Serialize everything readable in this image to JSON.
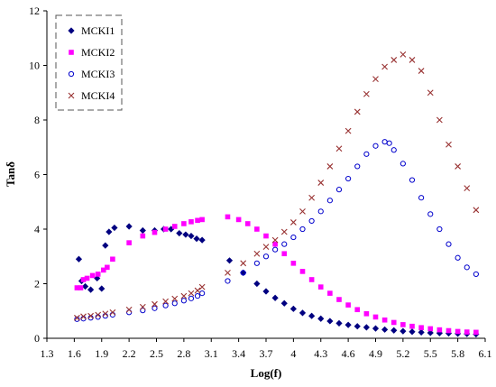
{
  "chart_data": {
    "type": "scatter",
    "title": "",
    "xlabel": "Log(f)",
    "ylabel": "Tanδ",
    "xlim": [
      1.3,
      6.1
    ],
    "ylim": [
      0,
      12
    ],
    "xticks": [
      "1.3",
      "1.6",
      "1.9",
      "2.2",
      "2.5",
      "2.8",
      "3.1",
      "3.4",
      "3.7",
      "4",
      "4.3",
      "4.6",
      "4.9",
      "5.2",
      "5.5",
      "5.8",
      "6.1"
    ],
    "yticks": [
      "0",
      "2",
      "4",
      "6",
      "8",
      "10",
      "12"
    ],
    "grid": false,
    "legend_position": "top-left",
    "series": [
      {
        "name": "MCKI1",
        "marker": "diamond",
        "color": "#000080",
        "points": [
          [
            1.65,
            2.9
          ],
          [
            1.68,
            2.1
          ],
          [
            1.72,
            1.9
          ],
          [
            1.78,
            1.78
          ],
          [
            1.85,
            2.2
          ],
          [
            1.9,
            1.82
          ],
          [
            1.94,
            3.4
          ],
          [
            1.98,
            3.9
          ],
          [
            2.04,
            4.05
          ],
          [
            2.2,
            4.1
          ],
          [
            2.35,
            3.95
          ],
          [
            2.48,
            3.95
          ],
          [
            2.58,
            4.0
          ],
          [
            2.66,
            4.0
          ],
          [
            2.75,
            3.85
          ],
          [
            2.82,
            3.8
          ],
          [
            2.88,
            3.75
          ],
          [
            2.94,
            3.65
          ],
          [
            3.0,
            3.6
          ],
          [
            3.3,
            2.85
          ],
          [
            3.45,
            2.4
          ],
          [
            3.6,
            2.0
          ],
          [
            3.7,
            1.72
          ],
          [
            3.8,
            1.48
          ],
          [
            3.9,
            1.28
          ],
          [
            4.0,
            1.08
          ],
          [
            4.1,
            0.93
          ],
          [
            4.2,
            0.82
          ],
          [
            4.3,
            0.72
          ],
          [
            4.4,
            0.63
          ],
          [
            4.5,
            0.55
          ],
          [
            4.6,
            0.49
          ],
          [
            4.7,
            0.44
          ],
          [
            4.8,
            0.4
          ],
          [
            4.9,
            0.36
          ],
          [
            5.0,
            0.32
          ],
          [
            5.1,
            0.29
          ],
          [
            5.2,
            0.26
          ],
          [
            5.3,
            0.24
          ],
          [
            5.4,
            0.22
          ],
          [
            5.5,
            0.2
          ],
          [
            5.6,
            0.19
          ],
          [
            5.7,
            0.18
          ],
          [
            5.8,
            0.17
          ],
          [
            5.9,
            0.16
          ],
          [
            6.0,
            0.15
          ]
        ]
      },
      {
        "name": "MCKI2",
        "marker": "square",
        "color": "#FF00FF",
        "points": [
          [
            1.63,
            1.85
          ],
          [
            1.67,
            1.85
          ],
          [
            1.7,
            2.15
          ],
          [
            1.74,
            2.2
          ],
          [
            1.8,
            2.3
          ],
          [
            1.86,
            2.35
          ],
          [
            1.92,
            2.5
          ],
          [
            1.96,
            2.6
          ],
          [
            2.02,
            2.9
          ],
          [
            2.2,
            3.5
          ],
          [
            2.35,
            3.75
          ],
          [
            2.48,
            3.88
          ],
          [
            2.6,
            4.0
          ],
          [
            2.7,
            4.1
          ],
          [
            2.8,
            4.2
          ],
          [
            2.88,
            4.27
          ],
          [
            2.95,
            4.32
          ],
          [
            3.0,
            4.35
          ],
          [
            3.28,
            4.45
          ],
          [
            3.4,
            4.35
          ],
          [
            3.5,
            4.2
          ],
          [
            3.6,
            4.0
          ],
          [
            3.7,
            3.75
          ],
          [
            3.8,
            3.45
          ],
          [
            3.9,
            3.1
          ],
          [
            4.0,
            2.75
          ],
          [
            4.1,
            2.45
          ],
          [
            4.2,
            2.15
          ],
          [
            4.3,
            1.88
          ],
          [
            4.4,
            1.65
          ],
          [
            4.5,
            1.42
          ],
          [
            4.6,
            1.22
          ],
          [
            4.7,
            1.05
          ],
          [
            4.8,
            0.9
          ],
          [
            4.9,
            0.78
          ],
          [
            5.0,
            0.67
          ],
          [
            5.1,
            0.58
          ],
          [
            5.2,
            0.5
          ],
          [
            5.3,
            0.44
          ],
          [
            5.4,
            0.39
          ],
          [
            5.5,
            0.35
          ],
          [
            5.6,
            0.31
          ],
          [
            5.7,
            0.28
          ],
          [
            5.8,
            0.25
          ],
          [
            5.9,
            0.23
          ],
          [
            6.0,
            0.22
          ]
        ]
      },
      {
        "name": "MCKI3",
        "marker": "circle",
        "color": "#0000CC",
        "points": [
          [
            1.63,
            0.7
          ],
          [
            1.7,
            0.72
          ],
          [
            1.78,
            0.75
          ],
          [
            1.86,
            0.78
          ],
          [
            1.94,
            0.82
          ],
          [
            2.02,
            0.86
          ],
          [
            2.2,
            0.95
          ],
          [
            2.35,
            1.02
          ],
          [
            2.48,
            1.1
          ],
          [
            2.6,
            1.2
          ],
          [
            2.7,
            1.28
          ],
          [
            2.8,
            1.38
          ],
          [
            2.88,
            1.46
          ],
          [
            2.95,
            1.55
          ],
          [
            3.0,
            1.65
          ],
          [
            3.28,
            2.1
          ],
          [
            3.45,
            2.4
          ],
          [
            3.6,
            2.75
          ],
          [
            3.7,
            3.0
          ],
          [
            3.8,
            3.25
          ],
          [
            3.9,
            3.45
          ],
          [
            4.0,
            3.7
          ],
          [
            4.1,
            4.0
          ],
          [
            4.2,
            4.3
          ],
          [
            4.3,
            4.65
          ],
          [
            4.4,
            5.05
          ],
          [
            4.5,
            5.45
          ],
          [
            4.6,
            5.85
          ],
          [
            4.7,
            6.3
          ],
          [
            4.8,
            6.75
          ],
          [
            4.9,
            7.05
          ],
          [
            5.0,
            7.2
          ],
          [
            5.05,
            7.15
          ],
          [
            5.1,
            6.9
          ],
          [
            5.2,
            6.4
          ],
          [
            5.3,
            5.8
          ],
          [
            5.4,
            5.15
          ],
          [
            5.5,
            4.55
          ],
          [
            5.6,
            4.0
          ],
          [
            5.7,
            3.45
          ],
          [
            5.8,
            2.95
          ],
          [
            5.9,
            2.6
          ],
          [
            6.0,
            2.35
          ]
        ]
      },
      {
        "name": "MCKI4",
        "marker": "cross",
        "color": "#993333",
        "points": [
          [
            1.63,
            0.75
          ],
          [
            1.7,
            0.8
          ],
          [
            1.78,
            0.82
          ],
          [
            1.86,
            0.86
          ],
          [
            1.94,
            0.9
          ],
          [
            2.02,
            0.95
          ],
          [
            2.2,
            1.05
          ],
          [
            2.35,
            1.15
          ],
          [
            2.48,
            1.25
          ],
          [
            2.6,
            1.35
          ],
          [
            2.7,
            1.45
          ],
          [
            2.8,
            1.55
          ],
          [
            2.88,
            1.65
          ],
          [
            2.95,
            1.75
          ],
          [
            3.0,
            1.88
          ],
          [
            3.28,
            2.4
          ],
          [
            3.45,
            2.75
          ],
          [
            3.6,
            3.1
          ],
          [
            3.7,
            3.35
          ],
          [
            3.8,
            3.6
          ],
          [
            3.9,
            3.9
          ],
          [
            4.0,
            4.25
          ],
          [
            4.1,
            4.65
          ],
          [
            4.2,
            5.15
          ],
          [
            4.3,
            5.7
          ],
          [
            4.4,
            6.3
          ],
          [
            4.5,
            6.95
          ],
          [
            4.6,
            7.6
          ],
          [
            4.7,
            8.3
          ],
          [
            4.8,
            8.95
          ],
          [
            4.9,
            9.5
          ],
          [
            5.0,
            9.95
          ],
          [
            5.1,
            10.2
          ],
          [
            5.2,
            10.4
          ],
          [
            5.3,
            10.2
          ],
          [
            5.4,
            9.8
          ],
          [
            5.5,
            9.0
          ],
          [
            5.6,
            8.0
          ],
          [
            5.7,
            7.1
          ],
          [
            5.8,
            6.3
          ],
          [
            5.9,
            5.5
          ],
          [
            6.0,
            4.7
          ]
        ]
      }
    ]
  }
}
